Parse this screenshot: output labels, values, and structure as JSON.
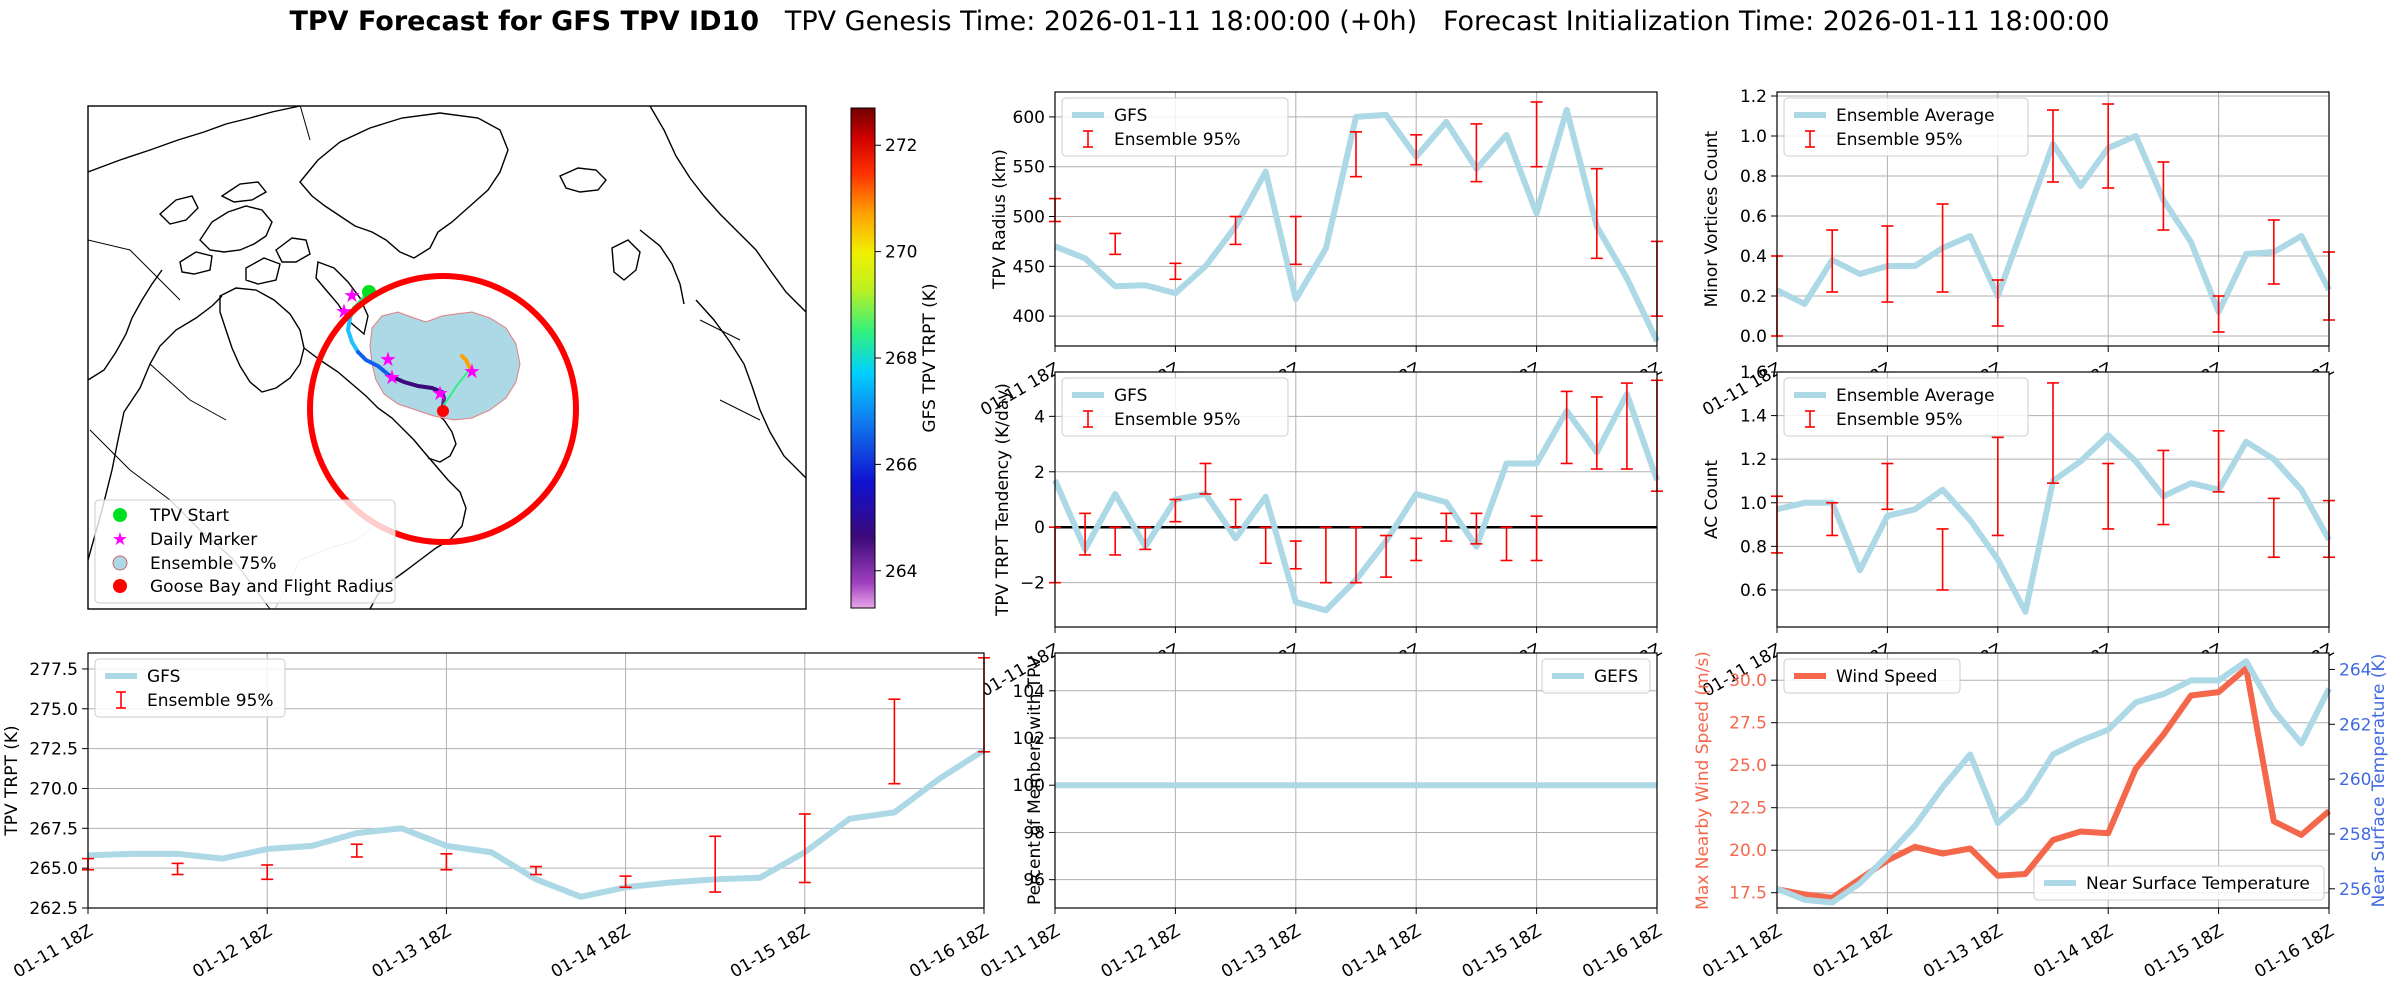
{
  "suptitle": {
    "bold": "TPV Forecast for GFS TPV ID10",
    "genesis": "TPV Genesis Time: 2026-01-11 18:00:00 (+0h)",
    "init": "Forecast Initialization Time: 2026-01-11 18:00:00"
  },
  "colors": {
    "gfs_line": "#add8e6",
    "errbar": "#ff0000",
    "wind": "#f4674b",
    "temp_axis": "#4169e1",
    "grid": "#b0b0b0",
    "ensemble_fill": "#add8e6",
    "flight_radius": "#ff0000"
  },
  "map": {
    "legend": [
      "TPV Start",
      "Daily Marker",
      "Ensemble 75%",
      "Goose Bay and Flight Radius"
    ],
    "colorbar": {
      "label": "GFS TPV TRPT (K)",
      "ticks": [
        264,
        266,
        268,
        270,
        272
      ],
      "range": [
        263.3,
        272.7
      ]
    }
  },
  "chart_data": [
    {
      "id": "trpt",
      "type": "line",
      "ylabel": "TPV TRPT (K)",
      "xticks": [
        "01-11 18Z",
        "01-12 18Z",
        "01-13 18Z",
        "01-14 18Z",
        "01-15 18Z",
        "01-16 18Z"
      ],
      "xlim": [
        0,
        20
      ],
      "ylim": [
        262.5,
        278.5
      ],
      "yticks": [
        262.5,
        265.0,
        267.5,
        270.0,
        272.5,
        275.0,
        277.5
      ],
      "ytick_labels": [
        "262.5",
        "265.0",
        "267.5",
        "270.0",
        "272.5",
        "275.0",
        "277.5"
      ],
      "legend": [
        "GFS",
        "Ensemble 95%"
      ],
      "series": [
        {
          "name": "GFS",
          "values": [
            265.8,
            265.9,
            265.9,
            265.6,
            266.2,
            266.4,
            267.2,
            267.5,
            266.4,
            266.0,
            264.3,
            263.2,
            263.8,
            264.1,
            264.3,
            264.4,
            266.0,
            268.1,
            268.5,
            270.6,
            272.4
          ]
        }
      ],
      "errorbars": [
        [
          0,
          264.9,
          265.6
        ],
        [
          2,
          264.6,
          265.3
        ],
        [
          4,
          264.3,
          265.2
        ],
        [
          6,
          265.7,
          266.5
        ],
        [
          8,
          264.9,
          265.9
        ],
        [
          10,
          264.6,
          265.1
        ],
        [
          12,
          263.8,
          264.5
        ],
        [
          14,
          263.5,
          267.0
        ],
        [
          16,
          264.1,
          268.4
        ],
        [
          18,
          270.3,
          275.6
        ],
        [
          20,
          272.3,
          278.2
        ]
      ]
    },
    {
      "id": "radius",
      "type": "line",
      "ylabel": "TPV Radius (km)",
      "xlim": [
        0,
        20
      ],
      "ylim": [
        370,
        625
      ],
      "yticks": [
        400,
        450,
        500,
        550,
        600
      ],
      "ytick_labels": [
        "400",
        "450",
        "500",
        "550",
        "600"
      ],
      "legend": [
        "GFS",
        "Ensemble 95%"
      ],
      "series": [
        {
          "name": "GFS",
          "values": [
            470,
            458,
            430,
            431,
            423,
            450,
            490,
            545,
            417,
            468,
            600,
            602,
            560,
            595,
            548,
            582,
            503,
            607,
            490,
            438,
            375
          ]
        }
      ],
      "errorbars": [
        [
          0,
          495,
          518
        ],
        [
          2,
          462,
          483
        ],
        [
          4,
          437,
          453
        ],
        [
          6,
          472,
          500
        ],
        [
          8,
          452,
          500
        ],
        [
          10,
          540,
          585
        ],
        [
          12,
          552,
          582
        ],
        [
          14,
          535,
          593
        ],
        [
          16,
          550,
          615
        ],
        [
          18,
          458,
          548
        ],
        [
          20,
          400,
          475
        ]
      ]
    },
    {
      "id": "minor",
      "type": "line",
      "ylabel": "Minor Vortices Count",
      "xlim": [
        0,
        20
      ],
      "ylim": [
        -0.05,
        1.22
      ],
      "yticks": [
        0.0,
        0.2,
        0.4,
        0.6,
        0.8,
        1.0,
        1.2
      ],
      "ytick_labels": [
        "0.0",
        "0.2",
        "0.4",
        "0.6",
        "0.8",
        "1.0",
        "1.2"
      ],
      "legend": [
        "Ensemble Average",
        "Ensemble 95%"
      ],
      "series": [
        {
          "name": "Ensemble Average",
          "values": [
            0.23,
            0.16,
            0.38,
            0.31,
            0.35,
            0.35,
            0.44,
            0.5,
            0.2,
            0.58,
            0.96,
            0.75,
            0.94,
            1.0,
            0.68,
            0.47,
            0.12,
            0.41,
            0.42,
            0.5,
            0.23
          ]
        }
      ],
      "errorbars": [
        [
          0,
          0.0,
          0.4
        ],
        [
          2,
          0.22,
          0.53
        ],
        [
          4,
          0.17,
          0.55
        ],
        [
          6,
          0.22,
          0.66
        ],
        [
          8,
          0.05,
          0.28
        ],
        [
          10,
          0.77,
          1.13
        ],
        [
          12,
          0.74,
          1.16
        ],
        [
          14,
          0.53,
          0.87
        ],
        [
          16,
          0.02,
          0.2
        ],
        [
          18,
          0.26,
          0.58
        ],
        [
          20,
          0.08,
          0.42
        ]
      ]
    },
    {
      "id": "tendency",
      "type": "line",
      "ylabel": "TPV TRPT Tendency (K/day)",
      "xlim": [
        0,
        20
      ],
      "ylim": [
        -3.6,
        5.6
      ],
      "yticks": [
        -2,
        0,
        2,
        4
      ],
      "ytick_labels": [
        "−2",
        "0",
        "2",
        "4"
      ],
      "legend": [
        "GFS",
        "Ensemble 95%"
      ],
      "series": [
        {
          "name": "GFS",
          "values": [
            1.7,
            -0.8,
            1.2,
            -0.7,
            1.0,
            1.2,
            -0.4,
            1.1,
            -2.7,
            -3.0,
            -1.9,
            -0.5,
            1.2,
            0.9,
            -0.7,
            2.3,
            2.3,
            4.2,
            2.7,
            4.8,
            1.7
          ]
        }
      ],
      "errorbars": [
        [
          0,
          -2.0,
          0.0
        ],
        [
          1,
          -1.0,
          0.5
        ],
        [
          2,
          -1.0,
          0.0
        ],
        [
          3,
          -0.8,
          0.0
        ],
        [
          4,
          0.2,
          1.0
        ],
        [
          5,
          1.2,
          2.3
        ],
        [
          6,
          0.0,
          1.0
        ],
        [
          7,
          -1.3,
          0.0
        ],
        [
          8,
          -1.5,
          -0.5
        ],
        [
          9,
          -2.0,
          0.0
        ],
        [
          10,
          -2.0,
          0.0
        ],
        [
          11,
          -1.8,
          -0.3
        ],
        [
          12,
          -1.2,
          -0.4
        ],
        [
          13,
          -0.5,
          0.5
        ],
        [
          14,
          -0.6,
          0.5
        ],
        [
          15,
          -1.2,
          0.0
        ],
        [
          16,
          -1.2,
          0.4
        ],
        [
          17,
          2.3,
          4.9
        ],
        [
          18,
          2.1,
          4.7
        ],
        [
          19,
          2.1,
          5.2
        ],
        [
          20,
          1.3,
          5.3
        ]
      ]
    },
    {
      "id": "ac",
      "type": "line",
      "ylabel": "AC Count",
      "xlim": [
        0,
        20
      ],
      "ylim": [
        0.43,
        1.6
      ],
      "yticks": [
        0.6,
        0.8,
        1.0,
        1.2,
        1.4,
        1.6
      ],
      "ytick_labels": [
        "0.6",
        "0.8",
        "1.0",
        "1.2",
        "1.4",
        "1.6"
      ],
      "legend": [
        "Ensemble Average",
        "Ensemble 95%"
      ],
      "series": [
        {
          "name": "Ensemble Average",
          "values": [
            0.97,
            1.0,
            1.0,
            0.69,
            0.94,
            0.97,
            1.06,
            0.92,
            0.74,
            0.5,
            1.1,
            1.19,
            1.31,
            1.19,
            1.03,
            1.09,
            1.06,
            1.28,
            1.2,
            1.06,
            0.83
          ]
        }
      ],
      "errorbars": [
        [
          0,
          0.77,
          1.03
        ],
        [
          2,
          0.85,
          1.0
        ],
        [
          4,
          0.97,
          1.18
        ],
        [
          6,
          0.6,
          0.88
        ],
        [
          8,
          0.85,
          1.3
        ],
        [
          10,
          1.09,
          1.55
        ],
        [
          12,
          0.88,
          1.18
        ],
        [
          14,
          0.9,
          1.24
        ],
        [
          16,
          1.05,
          1.33
        ],
        [
          18,
          0.75,
          1.02
        ],
        [
          20,
          0.75,
          1.01
        ]
      ]
    },
    {
      "id": "members",
      "type": "line",
      "ylabel": "Percent of Members with TPV",
      "xlim": [
        0,
        20
      ],
      "ylim": [
        94.8,
        105.6
      ],
      "yticks": [
        96,
        98,
        100,
        102,
        104
      ],
      "ytick_labels": [
        "96",
        "98",
        "100",
        "102",
        "104"
      ],
      "legend": [
        "GEFS"
      ],
      "series": [
        {
          "name": "GEFS",
          "values": [
            100,
            100,
            100,
            100,
            100,
            100,
            100,
            100,
            100,
            100,
            100,
            100,
            100,
            100,
            100,
            100,
            100,
            100,
            100,
            100,
            100
          ]
        }
      ]
    },
    {
      "id": "wind_temp",
      "type": "line",
      "ylabel": "Max Nearby Wind Speed (m/s)",
      "y2label": "Near Surface Temperature (K)",
      "xlim": [
        0,
        20
      ],
      "ylim": [
        16.6,
        31.6
      ],
      "yticks": [
        17.5,
        20.0,
        22.5,
        25.0,
        27.5,
        30.0
      ],
      "ytick_labels": [
        "17.5",
        "20.0",
        "22.5",
        "25.0",
        "27.5",
        "30.0"
      ],
      "y2lim": [
        255.3,
        264.6
      ],
      "y2ticks": [
        256,
        258,
        260,
        262,
        264
      ],
      "y2tick_labels": [
        "256",
        "258",
        "260",
        "262",
        "264"
      ],
      "legend": [
        "Wind Speed",
        "Near Surface Temperature"
      ],
      "series": [
        {
          "name": "Wind Speed",
          "values": [
            17.7,
            17.4,
            17.2,
            18.3,
            19.4,
            20.2,
            19.8,
            20.1,
            18.5,
            18.6,
            20.6,
            21.1,
            21.0,
            24.8,
            26.8,
            29.1,
            29.3,
            30.7,
            21.7,
            20.9,
            22.3
          ]
        },
        {
          "name": "Near Surface Temperature",
          "values": [
            256.0,
            255.6,
            255.5,
            256.2,
            257.2,
            258.3,
            259.7,
            260.9,
            258.4,
            259.3,
            260.9,
            261.4,
            261.8,
            262.8,
            263.1,
            263.6,
            263.6,
            264.3,
            262.5,
            261.3,
            263.3
          ]
        }
      ]
    }
  ]
}
